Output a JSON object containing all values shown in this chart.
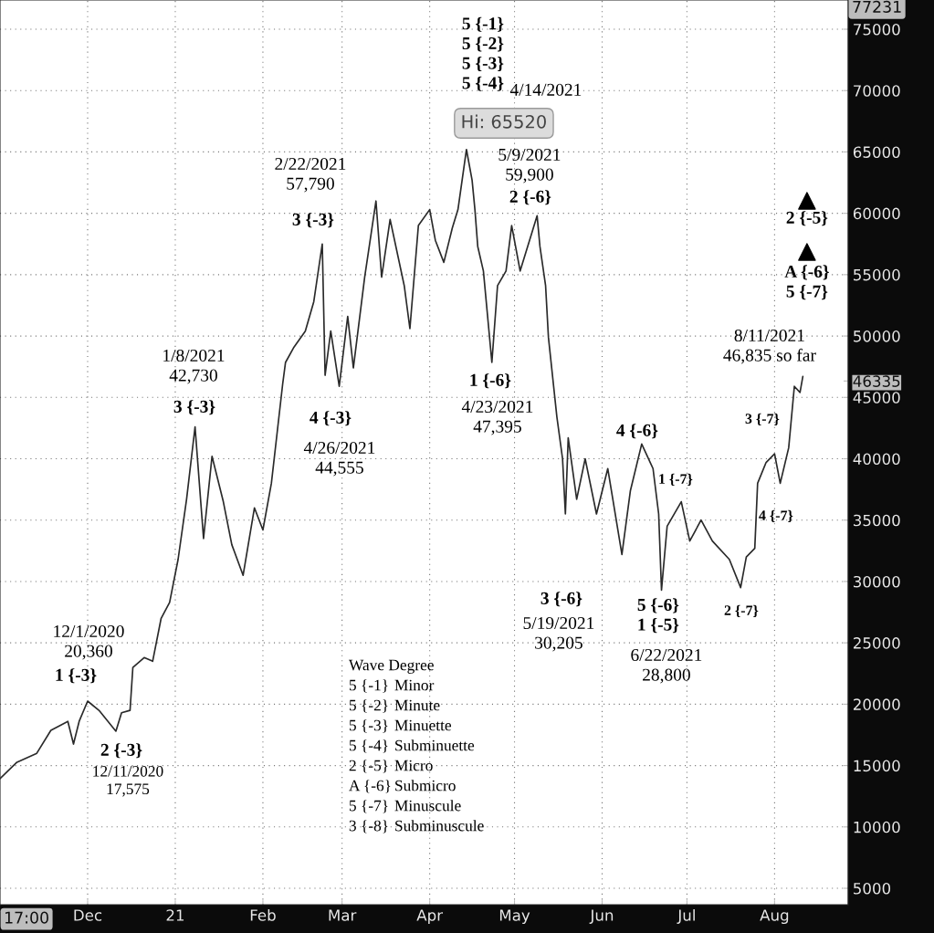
{
  "chart_data": {
    "type": "line",
    "color": "#2a2a2a",
    "line_style": "solid",
    "marker": "none",
    "grid": true,
    "legend": false,
    "x": [
      "2020-10-31",
      "2020-11-06",
      "2020-11-13",
      "2020-11-18",
      "2020-11-24",
      "2020-11-26",
      "2020-11-28",
      "2020-12-01",
      "2020-12-05",
      "2020-12-11",
      "2020-12-13",
      "2020-12-16",
      "2020-12-17",
      "2020-12-21",
      "2020-12-24",
      "2020-12-27",
      "2020-12-30",
      "2021-01-02",
      "2021-01-05",
      "2021-01-08",
      "2021-01-11",
      "2021-01-14",
      "2021-01-18",
      "2021-01-21",
      "2021-01-25",
      "2021-01-29",
      "2021-02-01",
      "2021-02-04",
      "2021-02-08",
      "2021-02-09",
      "2021-02-12",
      "2021-02-16",
      "2021-02-19",
      "2021-02-22",
      "2021-02-23",
      "2021-02-25",
      "2021-02-28",
      "2021-03-03",
      "2021-03-05",
      "2021-03-09",
      "2021-03-13",
      "2021-03-15",
      "2021-03-18",
      "2021-03-23",
      "2021-03-25",
      "2021-03-28",
      "2021-04-01",
      "2021-04-03",
      "2021-04-06",
      "2021-04-09",
      "2021-04-11",
      "2021-04-14",
      "2021-04-16",
      "2021-04-17",
      "2021-04-18",
      "2021-04-20",
      "2021-04-23",
      "2021-04-25",
      "2021-04-28",
      "2021-04-30",
      "2021-05-03",
      "2021-05-09",
      "2021-05-10",
      "2021-05-12",
      "2021-05-13",
      "2021-05-16",
      "2021-05-18",
      "2021-05-19",
      "2021-05-20",
      "2021-05-23",
      "2021-05-26",
      "2021-05-30",
      "2021-06-03",
      "2021-06-08",
      "2021-06-11",
      "2021-06-15",
      "2021-06-19",
      "2021-06-21",
      "2021-06-22",
      "2021-06-24",
      "2021-06-29",
      "2021-07-02",
      "2021-07-06",
      "2021-07-10",
      "2021-07-16",
      "2021-07-20",
      "2021-07-22",
      "2021-07-25",
      "2021-07-26",
      "2021-07-29",
      "2021-08-01",
      "2021-08-03",
      "2021-08-06",
      "2021-08-08",
      "2021-08-10",
      "2021-08-11"
    ],
    "values": [
      13930,
      15270,
      16000,
      17870,
      18600,
      16750,
      18600,
      20250,
      19500,
      17800,
      19300,
      19500,
      23000,
      23800,
      23500,
      27000,
      28300,
      31800,
      36700,
      42600,
      33500,
      40200,
      36500,
      33000,
      30500,
      36000,
      34200,
      38000,
      46100,
      47850,
      49100,
      50400,
      52800,
      57500,
      46800,
      50400,
      45900,
      51600,
      47400,
      54800,
      61000,
      54800,
      59500,
      54100,
      50600,
      59000,
      60300,
      57800,
      56000,
      58800,
      60300,
      65200,
      62700,
      60300,
      57300,
      55300,
      47850,
      54100,
      55300,
      59000,
      55300,
      59800,
      57300,
      54100,
      49900,
      43400,
      40000,
      35500,
      41700,
      36700,
      40000,
      35500,
      39200,
      32200,
      37400,
      41200,
      39200,
      35500,
      29300,
      34500,
      36500,
      33300,
      35000,
      33300,
      31800,
      29500,
      32000,
      32700,
      38000,
      39700,
      40400,
      38000,
      40900,
      45900,
      45400,
      46700
    ],
    "xlim": [
      "2020-10-31",
      "2021-08-27"
    ],
    "xticks": [
      {
        "value": "2020-12-01",
        "label": "Dec"
      },
      {
        "value": "2021-01-01",
        "label": "21"
      },
      {
        "value": "2021-02-01",
        "label": "Feb"
      },
      {
        "value": "2021-03-01",
        "label": "Mar"
      },
      {
        "value": "2021-04-01",
        "label": "Apr"
      },
      {
        "value": "2021-05-01",
        "label": "May"
      },
      {
        "value": "2021-06-01",
        "label": "Jun"
      },
      {
        "value": "2021-07-01",
        "label": "Jul"
      },
      {
        "value": "2021-08-01",
        "label": "Aug"
      }
    ],
    "ylim": [
      3660,
      77380
    ],
    "yticks": [
      5000,
      10000,
      15000,
      20000,
      25000,
      30000,
      35000,
      40000,
      45000,
      46335,
      50000,
      55000,
      60000,
      65000,
      70000,
      75000
    ],
    "annotations": [
      "12/1/2020\n20,360",
      "1 {-3}",
      "2 {-3}",
      "12/11/2020\n17,575",
      "1/8/2021\n42,730",
      "3 {-3}",
      "2/22/2021\n57,790",
      "3 {-3}",
      "4 {-3}",
      "4/26/2021\n44,555",
      "5 {-1}\n5 {-2}\n5 {-3}\n5 {-4}",
      "4/14/2021",
      "Hi: 65520",
      "5/9/2021\n59,900",
      "2 {-6}",
      "1 {-6}",
      "4/23/2021\n47,395",
      "3 {-6}",
      "5/19/2021\n30,205",
      "4 {-6}",
      "1 {-7}",
      "5 {-6}\n1 {-5}",
      "6/22/2021\n28,800",
      "2 {-7}",
      "3 {-7}",
      "4 {-7}",
      "8/11/2021\n46,835 so far",
      "2 {-5}",
      "A {-6}\n5 {-7}",
      "Wave Degree",
      "5 {-1}",
      "Minor",
      "5 {-2}",
      "Minute",
      "5 {-3}",
      "Minuette",
      "5 {-4}",
      "Subminuette",
      "2 {-5}",
      "Micro",
      "A {-6}",
      "Submicro",
      "5 {-7}",
      "Minuscule",
      "3 {-8}",
      "Subminuscule",
      "17:00",
      "77231"
    ]
  }
}
